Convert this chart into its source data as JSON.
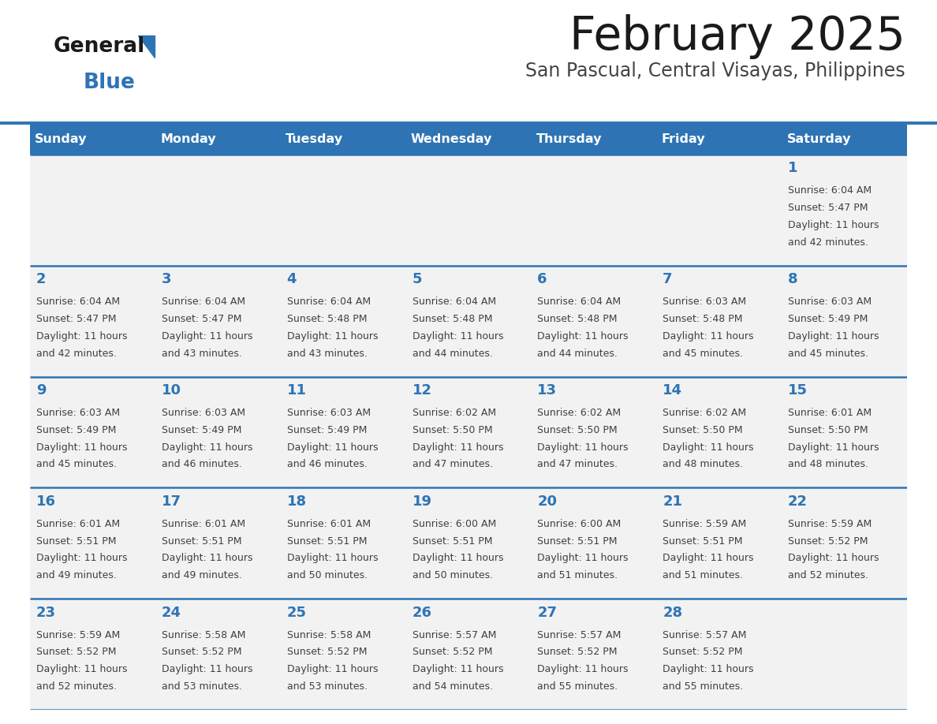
{
  "title": "February 2025",
  "subtitle": "San Pascual, Central Visayas, Philippines",
  "days_of_week": [
    "Sunday",
    "Monday",
    "Tuesday",
    "Wednesday",
    "Thursday",
    "Friday",
    "Saturday"
  ],
  "header_bg": "#2E74B5",
  "header_text": "#FFFFFF",
  "row_bg": "#F2F2F2",
  "cell_border_color": "#2E74B5",
  "day_num_color": "#2E74B5",
  "info_color": "#404040",
  "title_color": "#1a1a1a",
  "subtitle_color": "#444444",
  "logo_general_color": "#1a1a1a",
  "logo_blue_color": "#2E74B5",
  "calendar_data": [
    {
      "day": 1,
      "col": 6,
      "row": 0,
      "sunrise": "6:04 AM",
      "sunset": "5:47 PM",
      "daylight_min": "42 minutes."
    },
    {
      "day": 2,
      "col": 0,
      "row": 1,
      "sunrise": "6:04 AM",
      "sunset": "5:47 PM",
      "daylight_min": "42 minutes."
    },
    {
      "day": 3,
      "col": 1,
      "row": 1,
      "sunrise": "6:04 AM",
      "sunset": "5:47 PM",
      "daylight_min": "43 minutes."
    },
    {
      "day": 4,
      "col": 2,
      "row": 1,
      "sunrise": "6:04 AM",
      "sunset": "5:48 PM",
      "daylight_min": "43 minutes."
    },
    {
      "day": 5,
      "col": 3,
      "row": 1,
      "sunrise": "6:04 AM",
      "sunset": "5:48 PM",
      "daylight_min": "44 minutes."
    },
    {
      "day": 6,
      "col": 4,
      "row": 1,
      "sunrise": "6:04 AM",
      "sunset": "5:48 PM",
      "daylight_min": "44 minutes."
    },
    {
      "day": 7,
      "col": 5,
      "row": 1,
      "sunrise": "6:03 AM",
      "sunset": "5:48 PM",
      "daylight_min": "45 minutes."
    },
    {
      "day": 8,
      "col": 6,
      "row": 1,
      "sunrise": "6:03 AM",
      "sunset": "5:49 PM",
      "daylight_min": "45 minutes."
    },
    {
      "day": 9,
      "col": 0,
      "row": 2,
      "sunrise": "6:03 AM",
      "sunset": "5:49 PM",
      "daylight_min": "45 minutes."
    },
    {
      "day": 10,
      "col": 1,
      "row": 2,
      "sunrise": "6:03 AM",
      "sunset": "5:49 PM",
      "daylight_min": "46 minutes."
    },
    {
      "day": 11,
      "col": 2,
      "row": 2,
      "sunrise": "6:03 AM",
      "sunset": "5:49 PM",
      "daylight_min": "46 minutes."
    },
    {
      "day": 12,
      "col": 3,
      "row": 2,
      "sunrise": "6:02 AM",
      "sunset": "5:50 PM",
      "daylight_min": "47 minutes."
    },
    {
      "day": 13,
      "col": 4,
      "row": 2,
      "sunrise": "6:02 AM",
      "sunset": "5:50 PM",
      "daylight_min": "47 minutes."
    },
    {
      "day": 14,
      "col": 5,
      "row": 2,
      "sunrise": "6:02 AM",
      "sunset": "5:50 PM",
      "daylight_min": "48 minutes."
    },
    {
      "day": 15,
      "col": 6,
      "row": 2,
      "sunrise": "6:01 AM",
      "sunset": "5:50 PM",
      "daylight_min": "48 minutes."
    },
    {
      "day": 16,
      "col": 0,
      "row": 3,
      "sunrise": "6:01 AM",
      "sunset": "5:51 PM",
      "daylight_min": "49 minutes."
    },
    {
      "day": 17,
      "col": 1,
      "row": 3,
      "sunrise": "6:01 AM",
      "sunset": "5:51 PM",
      "daylight_min": "49 minutes."
    },
    {
      "day": 18,
      "col": 2,
      "row": 3,
      "sunrise": "6:01 AM",
      "sunset": "5:51 PM",
      "daylight_min": "50 minutes."
    },
    {
      "day": 19,
      "col": 3,
      "row": 3,
      "sunrise": "6:00 AM",
      "sunset": "5:51 PM",
      "daylight_min": "50 minutes."
    },
    {
      "day": 20,
      "col": 4,
      "row": 3,
      "sunrise": "6:00 AM",
      "sunset": "5:51 PM",
      "daylight_min": "51 minutes."
    },
    {
      "day": 21,
      "col": 5,
      "row": 3,
      "sunrise": "5:59 AM",
      "sunset": "5:51 PM",
      "daylight_min": "51 minutes."
    },
    {
      "day": 22,
      "col": 6,
      "row": 3,
      "sunrise": "5:59 AM",
      "sunset": "5:52 PM",
      "daylight_min": "52 minutes."
    },
    {
      "day": 23,
      "col": 0,
      "row": 4,
      "sunrise": "5:59 AM",
      "sunset": "5:52 PM",
      "daylight_min": "52 minutes."
    },
    {
      "day": 24,
      "col": 1,
      "row": 4,
      "sunrise": "5:58 AM",
      "sunset": "5:52 PM",
      "daylight_min": "53 minutes."
    },
    {
      "day": 25,
      "col": 2,
      "row": 4,
      "sunrise": "5:58 AM",
      "sunset": "5:52 PM",
      "daylight_min": "53 minutes."
    },
    {
      "day": 26,
      "col": 3,
      "row": 4,
      "sunrise": "5:57 AM",
      "sunset": "5:52 PM",
      "daylight_min": "54 minutes."
    },
    {
      "day": 27,
      "col": 4,
      "row": 4,
      "sunrise": "5:57 AM",
      "sunset": "5:52 PM",
      "daylight_min": "55 minutes."
    },
    {
      "day": 28,
      "col": 5,
      "row": 4,
      "sunrise": "5:57 AM",
      "sunset": "5:52 PM",
      "daylight_min": "55 minutes."
    }
  ]
}
